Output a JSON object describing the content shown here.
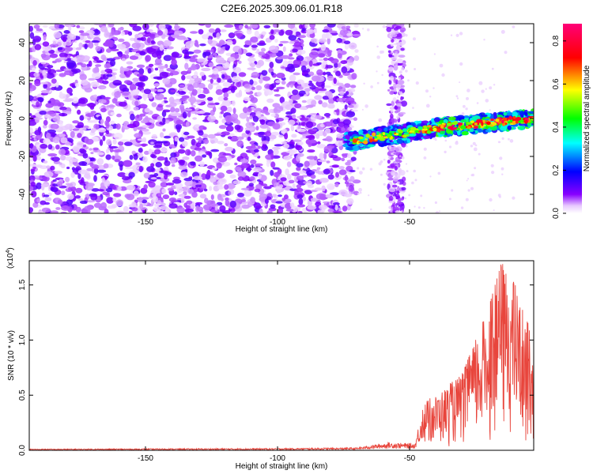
{
  "figure_title": "C2E6.2025.309.06.01.R18",
  "chart_data": [
    {
      "type": "heatmap",
      "title": "C2E6.2025.309.06.01.R18",
      "xlabel": "Height of straight line (km)",
      "ylabel": "Frequency (Hz)",
      "xlim": [
        -194,
        -3
      ],
      "ylim": [
        -50,
        50
      ],
      "xticks": [
        -150,
        -100,
        -50
      ],
      "yticks": [
        -40,
        -20,
        0,
        20,
        40
      ],
      "colorbar": {
        "label": "Normalized spectral amplitude",
        "range": [
          0.0,
          0.88
        ],
        "ticks": [
          0.0,
          0.2,
          0.4,
          0.6,
          0.8
        ],
        "colors": [
          "#ffffff",
          "#8800ff",
          "#0000ff",
          "#00ffff",
          "#00ff00",
          "#ffff00",
          "#ff0000",
          "#ff0077"
        ]
      },
      "description_regions": [
        {
          "x_range": [
            -194,
            -72
          ],
          "freq_range": [
            -50,
            50
          ],
          "amplitude": "0.0-0.15 (noise)"
        },
        {
          "x_range": [
            -72,
            -40
          ],
          "freq_center": [
            -14,
            -5
          ],
          "amplitude": "0.2-0.7"
        },
        {
          "x_range": [
            -40,
            -3
          ],
          "freq_center": [
            -5,
            0
          ],
          "amplitude": "0.3-0.88"
        }
      ]
    },
    {
      "type": "line",
      "xlabel": "Height of straight line (km)",
      "ylabel": "SNR (10 * v/v)",
      "scale_label": "(x10",
      "scale_exp": "4",
      "xlim": [
        -194,
        -3
      ],
      "ylim": [
        0,
        1.72
      ],
      "xticks": [
        -150,
        -100,
        -50
      ],
      "yticks": [
        0.0,
        0.5,
        1.0,
        1.5
      ],
      "color": "#e8453c",
      "series": [
        {
          "name": "SNR",
          "x_range": [
            -194,
            -3
          ],
          "approx_values": [
            {
              "x": -194,
              "y": 0.01
            },
            {
              "x": -100,
              "y": 0.015
            },
            {
              "x": -70,
              "y": 0.02
            },
            {
              "x": -58,
              "y": 0.06
            },
            {
              "x": -48,
              "y": 0.05
            },
            {
              "x": -44,
              "y": 0.45
            },
            {
              "x": -40,
              "y": 0.5
            },
            {
              "x": -30,
              "y": 0.7
            },
            {
              "x": -20,
              "y": 1.3
            },
            {
              "x": -15,
              "y": 1.72
            },
            {
              "x": -10,
              "y": 1.5
            },
            {
              "x": -3,
              "y": 1.0
            }
          ]
        }
      ]
    }
  ]
}
